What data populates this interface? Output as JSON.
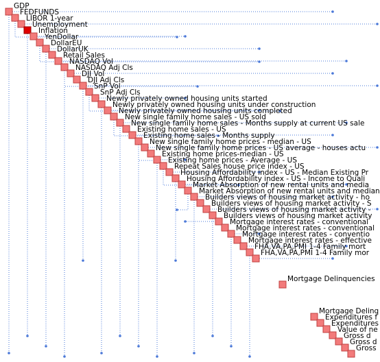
{
  "nodes": [
    {
      "label": "GDP"
    },
    {
      "label": "FEDFUNDS"
    },
    {
      "label": "LIBOR 1-year"
    },
    {
      "label": "Unemployment"
    },
    {
      "label": "Inflation"
    },
    {
      "label": "YenDollar"
    },
    {
      "label": "DollarEU"
    },
    {
      "label": "DollarUK"
    },
    {
      "label": "Retail Sales"
    },
    {
      "label": "NASDAQ Vol"
    },
    {
      "label": "NASDAQ Adj Cls"
    },
    {
      "label": "DJI Vol"
    },
    {
      "label": "DJI Adj Cls"
    },
    {
      "label": "SnP Vol"
    },
    {
      "label": "SnP Adj Cls"
    },
    {
      "label": "Newly privately owned housing units started"
    },
    {
      "label": "Newly privately owned housing units under construction"
    },
    {
      "label": "Newly privately owned housing units completed"
    },
    {
      "label": "New single family home sales - US sold"
    },
    {
      "label": "New single family home sales - Months supply at current US sale"
    },
    {
      "label": "Existing home sales - US"
    },
    {
      "label": "Existing home sales - Months supply"
    },
    {
      "label": "New single family home prices - median - US"
    },
    {
      "label": "New single family home prices - US average - houses actu"
    },
    {
      "label": "Existing home prices-median - US"
    },
    {
      "label": "Existing home prices - Average - US"
    },
    {
      "label": "Repeat Sales house price index - US"
    },
    {
      "label": "Housing Affordability index - US - Median Existing Pr"
    },
    {
      "label": "Housing Affordability index - US - Income to Quali"
    },
    {
      "label": "Market Absorption of new rental units and media"
    },
    {
      "label": "Market Absorption of new rental units and median"
    },
    {
      "label": "Builders views of housing market activity - ho"
    },
    {
      "label": "Builders views of housing market activity - S"
    },
    {
      "label": "Builders views of housing market activity -"
    },
    {
      "label": "Builders views of housing market activity"
    },
    {
      "label": "Mortgage interest rates - conventional"
    },
    {
      "label": "Mortgage interest rates - conventional"
    },
    {
      "label": "Mortgage interest rates - conventio"
    },
    {
      "label": "Mortgage interest rates - effective"
    },
    {
      "label": "FHA,VA,PA,PMI 1-4 Family mort"
    },
    {
      "label": "FHA,VA,PA,PMI 1-4 Family mor"
    },
    {
      "label": "Mortgage Delinquencies"
    },
    {
      "label": "Mortgage Delinq"
    },
    {
      "label": "Expenditures f"
    },
    {
      "label": "Expenditures"
    },
    {
      "label": "Value of ne"
    },
    {
      "label": "Gross d"
    },
    {
      "label": "Gross d"
    },
    {
      "label": "Gross"
    }
  ]
}
